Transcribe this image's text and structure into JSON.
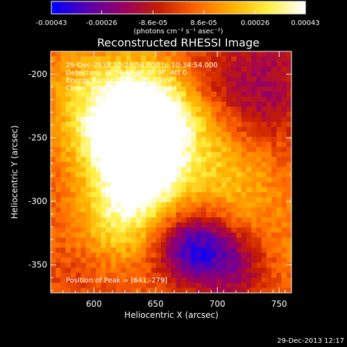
{
  "chart_data": {
    "type": "heatmap",
    "title": "Reconstructed RHESSI Image",
    "xlabel": "Heliocentric X (arcsec)",
    "ylabel": "Heliocentric Y (arcsec)",
    "x_range": [
      565,
      760
    ],
    "y_range": [
      -372,
      -182
    ],
    "x_ticks": [
      600,
      650,
      700,
      750
    ],
    "y_ticks": [
      -200,
      -250,
      -300,
      -350
    ],
    "colorbar": {
      "range": [
        -0.00043,
        0.00043
      ],
      "ticks": [
        "-0.00043",
        "-0.00026",
        "-8.6e-05",
        "8.6e-05",
        "0.00026",
        "0.00043"
      ],
      "tick_values": [
        -0.00043,
        -0.00026,
        -8.6e-05,
        8.6e-05,
        0.00026,
        0.00043
      ],
      "label": "(photons cm⁻² s⁻¹ asec⁻²)"
    },
    "annotations": [
      "29-Dec-2013 10:28:54.000 to 10:34:54.000",
      "Detectors: 3F 5F 6F 7F 8F 9F, Att 0",
      "Energy Range: 12.0 - 25.0 keV",
      "Clean     Total counts: 1.52E+04"
    ],
    "peak_label": "Position of Peak = [641,-279]",
    "peak": [
      641,
      -279
    ],
    "sources": [
      {
        "x": 641,
        "y": -279,
        "value": 0.00043
      },
      {
        "x": 612,
        "y": -246,
        "value": 0.00034
      },
      {
        "x": 660,
        "y": -238,
        "value": 0.00031
      },
      {
        "x": 633,
        "y": -218,
        "value": 0.00027
      },
      {
        "x": 618,
        "y": -315,
        "value": 0.00022
      },
      {
        "x": 700,
        "y": -275,
        "value": 0.00012
      },
      {
        "x": 725,
        "y": -300,
        "value": 9e-05
      },
      {
        "x": 585,
        "y": -205,
        "value": 0.0001
      },
      {
        "x": 745,
        "y": -345,
        "value": 7e-05
      },
      {
        "x": 680,
        "y": -337,
        "value": -0.00038
      },
      {
        "x": 715,
        "y": -345,
        "value": -0.00018
      },
      {
        "x": 700,
        "y": -205,
        "value": -0.00012
      },
      {
        "x": 740,
        "y": -225,
        "value": -0.00016
      },
      {
        "x": 745,
        "y": -185,
        "value": -0.00015
      },
      {
        "x": 720,
        "y": -362,
        "value": -8e-05
      },
      {
        "x": 590,
        "y": -355,
        "value": -5e-05
      }
    ],
    "colormap": [
      "#0000ff",
      "#5a00b0",
      "#9a0060",
      "#c81e00",
      "#ff6600",
      "#ffb000",
      "#fff040",
      "#ffffff"
    ]
  },
  "footer": {
    "timestamp": "29-Dec-2013 12:17"
  }
}
